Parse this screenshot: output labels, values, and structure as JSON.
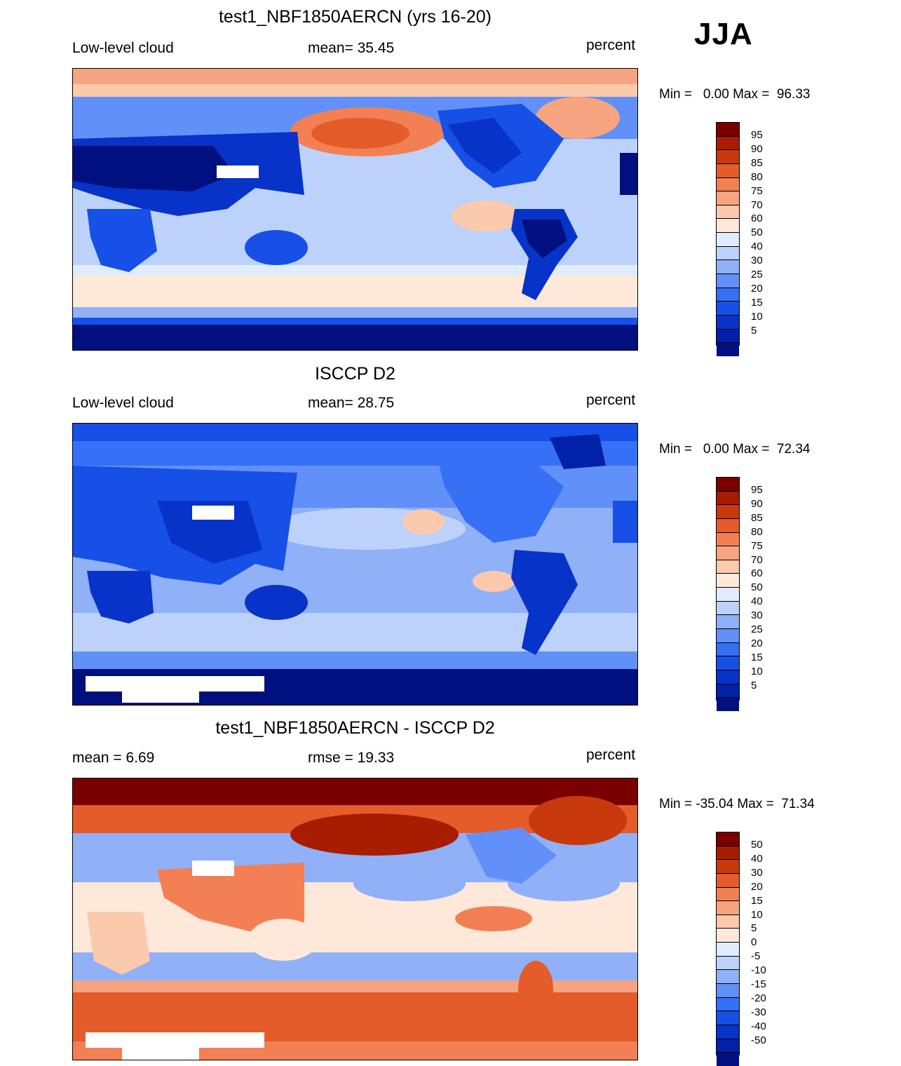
{
  "season": "JJA",
  "colors": {
    "seq": [
      "#00107e",
      "#0021a8",
      "#0833c8",
      "#1650e6",
      "#3570f5",
      "#6090f8",
      "#90b0f8",
      "#bcd2fa",
      "#e0ecfc",
      "#fde8da",
      "#fbc9ac",
      "#f7a480",
      "#f28054",
      "#e45c2a",
      "#c83a0e",
      "#a81c02",
      "#7a0000"
    ],
    "diff": [
      "#00107e",
      "#0021a8",
      "#0833c8",
      "#1650e6",
      "#3570f5",
      "#6090f8",
      "#90b0f8",
      "#bcd2fa",
      "#e0ecfc",
      "#fde8da",
      "#fbc9ac",
      "#f7a480",
      "#f28054",
      "#e45c2a",
      "#c83a0e",
      "#a81c02",
      "#7a0000"
    ]
  },
  "panels": [
    {
      "title": "test1_NBF1850AERCN (yrs 16-20)",
      "left_label": "Low-level cloud",
      "center_label": "mean=  35.45",
      "units": "percent",
      "minmax": "Min =   0.00 Max =  96.33",
      "colorbar_labels": [
        "95",
        "90",
        "85",
        "80",
        "75",
        "70",
        "60",
        "50",
        "40",
        "30",
        "25",
        "20",
        "15",
        "10",
        "5"
      ]
    },
    {
      "title": "ISCCP D2",
      "left_label": "Low-level cloud",
      "center_label": "mean=  28.75",
      "units": "percent",
      "minmax": "Min =   0.00 Max =  72.34",
      "colorbar_labels": [
        "95",
        "90",
        "85",
        "80",
        "75",
        "70",
        "60",
        "50",
        "40",
        "30",
        "25",
        "20",
        "15",
        "10",
        "5"
      ]
    },
    {
      "title": "test1_NBF1850AERCN - ISCCP D2",
      "left_label": "mean =   6.69",
      "center_label": "rmse =  19.33",
      "units": "percent",
      "minmax": "Min = -35.04 Max =  71.34",
      "colorbar_labels": [
        "50",
        "40",
        "30",
        "20",
        "15",
        "10",
        "5",
        "0",
        "-5",
        "-10",
        "-15",
        "-20",
        "-30",
        "-40",
        "-50"
      ]
    }
  ]
}
